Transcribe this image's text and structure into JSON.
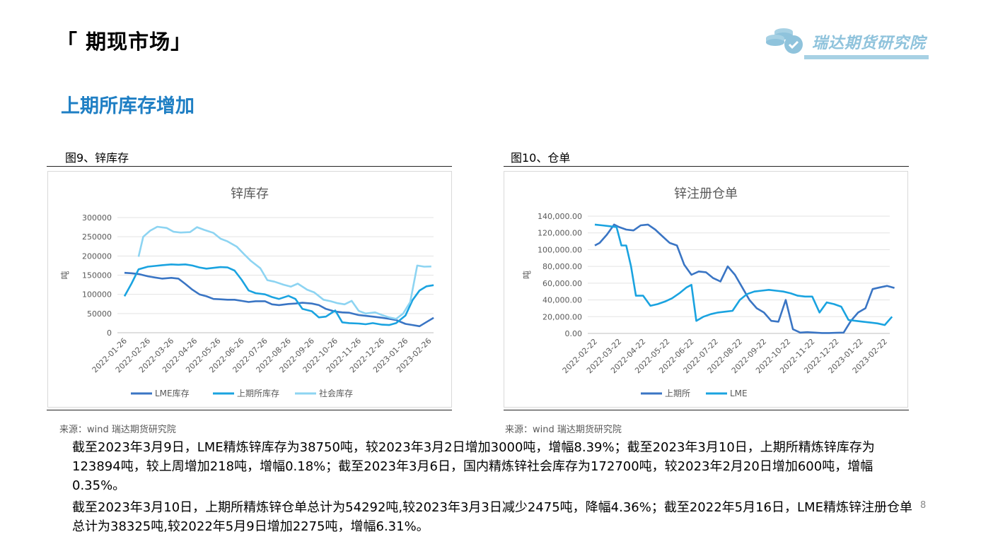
{
  "header": {
    "page_title": "「 期现市场」",
    "logo_text": "瑞达期货研究院"
  },
  "section_title": "上期所库存增加",
  "figures": [
    {
      "caption": "图9、锌库存",
      "source": "来源：wind   瑞达期货研究院"
    },
    {
      "caption": "图10、仓单",
      "source": "来源：wind   瑞达期货研究院"
    }
  ],
  "paragraphs": [
    "截至2023年3月9日，LME精炼锌库存为38750吨，较2023年3月2日增加3000吨，增幅8.39%；截至2023年3月10日，上期所精炼锌库存为123894吨，较上周增加218吨，增幅0.18%；截至2023年3月6日，国内精炼锌社会库存为172700吨，较2023年2月20日增加600吨，增幅0.35%。",
    "截至2023年3月10日，上期所精炼锌仓单总计为54292吨,较2023年3月3日减少2475吨，降幅4.36%；截至2022年5月16日，LME精炼锌注册仓单总计为38325吨,较2022年5月9日增加2275吨，增幅6.31%。"
  ],
  "page_number": "8",
  "chart_data": [
    {
      "type": "line",
      "title": "锌库存",
      "ylabel": "吨",
      "xlabel": "",
      "x_ticks": [
        "2022-01-26",
        "2022-02-26",
        "2022-03-26",
        "2022-04-26",
        "2022-05-26",
        "2022-06-26",
        "2022-07-26",
        "2022-08-26",
        "2022-09-26",
        "2022-10-26",
        "2022-11-26",
        "2022-12-26",
        "2023-01-26",
        "2023-02-26"
      ],
      "y_ticks": [
        "0",
        "50000",
        "100000",
        "150000",
        "200000",
        "250000",
        "300000"
      ],
      "ylim": [
        0,
        300000
      ],
      "grid": true,
      "legend": "bottom",
      "series": [
        {
          "name": "LME库存",
          "color": "#3a75c4",
          "x": [
            0,
            0.3,
            0.6,
            1,
            1.3,
            1.6,
            2,
            2.3,
            2.6,
            2.9,
            3.2,
            3.5,
            3.8,
            4.1,
            4.4,
            4.7,
            5,
            5.3,
            5.6,
            6,
            6.3,
            6.6,
            7,
            7.3,
            7.6,
            8,
            8.3,
            8.6,
            9,
            9.3,
            9.6,
            10,
            10.3,
            10.6,
            11,
            11.3,
            11.6,
            12,
            12.3,
            12.6,
            12.9,
            13.2
          ],
          "y": [
            156000,
            155000,
            153000,
            147000,
            144000,
            141000,
            143000,
            141000,
            127000,
            112000,
            100000,
            95000,
            88000,
            87000,
            86000,
            86000,
            83000,
            80000,
            82000,
            82000,
            74000,
            72000,
            75000,
            76000,
            78000,
            76000,
            72000,
            62000,
            55000,
            53000,
            52000,
            46000,
            44000,
            42000,
            39000,
            36000,
            33000,
            23000,
            20000,
            17000,
            28000,
            38750
          ]
        },
        {
          "name": "上期所库存",
          "color": "#1aa3e0",
          "x": [
            0,
            0.3,
            0.6,
            1,
            1.3,
            1.6,
            2,
            2.3,
            2.6,
            2.9,
            3.2,
            3.5,
            3.8,
            4.1,
            4.4,
            4.7,
            5,
            5.3,
            5.6,
            6,
            6.3,
            6.6,
            7,
            7.3,
            7.6,
            8,
            8.3,
            8.6,
            9,
            9.3,
            9.6,
            10,
            10.3,
            10.6,
            11,
            11.3,
            11.6,
            12,
            12.3,
            12.6,
            12.9,
            13.2
          ],
          "y": [
            95000,
            128000,
            165000,
            172000,
            174000,
            176000,
            178000,
            177000,
            178000,
            175000,
            170000,
            167000,
            169000,
            171000,
            170000,
            162000,
            138000,
            110000,
            103000,
            100000,
            93000,
            88000,
            96000,
            88000,
            62000,
            56000,
            40000,
            42000,
            58000,
            27000,
            25000,
            24000,
            22000,
            25000,
            21000,
            20000,
            25000,
            45000,
            85000,
            110000,
            121000,
            123894
          ]
        },
        {
          "name": "社会库存",
          "color": "#8dd4f2",
          "x": [
            0.6,
            0.8,
            1.1,
            1.4,
            1.8,
            2.1,
            2.4,
            2.8,
            3.1,
            3.4,
            3.8,
            4.1,
            4.4,
            4.8,
            5.1,
            5.4,
            5.8,
            6.1,
            6.4,
            6.8,
            7.1,
            7.4,
            7.8,
            8.1,
            8.5,
            8.8,
            9.1,
            9.4,
            9.7,
            10,
            10.3,
            10.7,
            11,
            11.3,
            11.6,
            11.9,
            12.2,
            12.5,
            12.8,
            13.1
          ],
          "y": [
            198000,
            250000,
            266000,
            276000,
            273000,
            263000,
            261000,
            262000,
            275000,
            268000,
            260000,
            245000,
            238000,
            224000,
            205000,
            187000,
            168000,
            137000,
            133000,
            125000,
            120000,
            128000,
            112000,
            105000,
            86000,
            82000,
            77000,
            74000,
            83000,
            57000,
            50000,
            53000,
            46000,
            40000,
            36000,
            50000,
            80000,
            175000,
            172100,
            172700
          ]
        }
      ]
    },
    {
      "type": "line",
      "title": "锌注册仓单",
      "ylabel": "吨",
      "xlabel": "",
      "x_ticks": [
        "2022-02-22",
        "2022-03-22",
        "2022-04-22",
        "2022-05-22",
        "2022-06-22",
        "2022-07-22",
        "2022-08-22",
        "2022-09-22",
        "2022-10-22",
        "2022-11-22",
        "2022-12-22",
        "2023-01-22",
        "2023-02-22"
      ],
      "y_ticks": [
        "0.00",
        "20,000.00",
        "40,000.00",
        "60,000.00",
        "80,000.00",
        "100,000.00",
        "120,000.00",
        "140,000.00"
      ],
      "ylim": [
        0,
        140000
      ],
      "grid": true,
      "legend": "bottom",
      "series": [
        {
          "name": "上期所",
          "color": "#3a75c4",
          "x": [
            0,
            0.2,
            0.5,
            0.8,
            1,
            1.3,
            1.6,
            1.9,
            2.2,
            2.5,
            2.8,
            3.1,
            3.4,
            3.7,
            4,
            4.3,
            4.6,
            4.9,
            5.2,
            5.5,
            5.8,
            6.1,
            6.4,
            6.7,
            7,
            7.3,
            7.6,
            7.9,
            8.2,
            8.5,
            8.8,
            9.1,
            9.4,
            9.7,
            10,
            10.3,
            10.6,
            10.9,
            11.2,
            11.5,
            11.8,
            12.1,
            12.4
          ],
          "y": [
            105000,
            108000,
            118000,
            130000,
            127000,
            124000,
            123000,
            129000,
            130000,
            124000,
            116000,
            108000,
            105000,
            82000,
            70000,
            74000,
            73000,
            66000,
            62000,
            80000,
            70000,
            55000,
            40000,
            30000,
            25000,
            15000,
            14000,
            40000,
            5000,
            1000,
            1500,
            1000,
            500,
            500,
            800,
            1000,
            15000,
            25000,
            30000,
            53000,
            55000,
            56800,
            54292
          ]
        },
        {
          "name": "LME",
          "color": "#1aa3e0",
          "x": [
            0,
            0.3,
            0.6,
            0.9,
            1.1,
            1.3,
            1.5,
            1.7,
            2,
            2.3,
            2.6,
            2.9,
            3.2,
            3.5,
            3.8,
            4,
            4.2,
            4.5,
            4.8,
            5.1,
            5.4,
            5.7,
            6,
            6.3,
            6.6,
            6.9,
            7.2,
            7.5,
            7.8,
            8.1,
            8.4,
            8.7,
            9,
            9.3,
            9.6,
            9.9,
            10.2,
            10.5,
            10.8,
            11.1,
            11.4,
            11.7,
            12,
            12.3
          ],
          "y": [
            130000,
            129000,
            128000,
            127000,
            105000,
            105000,
            80000,
            45000,
            45000,
            33000,
            35000,
            38000,
            42000,
            48000,
            55000,
            58000,
            15000,
            20000,
            23000,
            25000,
            26000,
            27000,
            40000,
            47000,
            50000,
            51000,
            52000,
            51000,
            50000,
            48000,
            45000,
            44000,
            44000,
            25000,
            37000,
            35000,
            32000,
            16000,
            15000,
            14000,
            13000,
            12000,
            10000,
            20000
          ]
        }
      ]
    }
  ]
}
